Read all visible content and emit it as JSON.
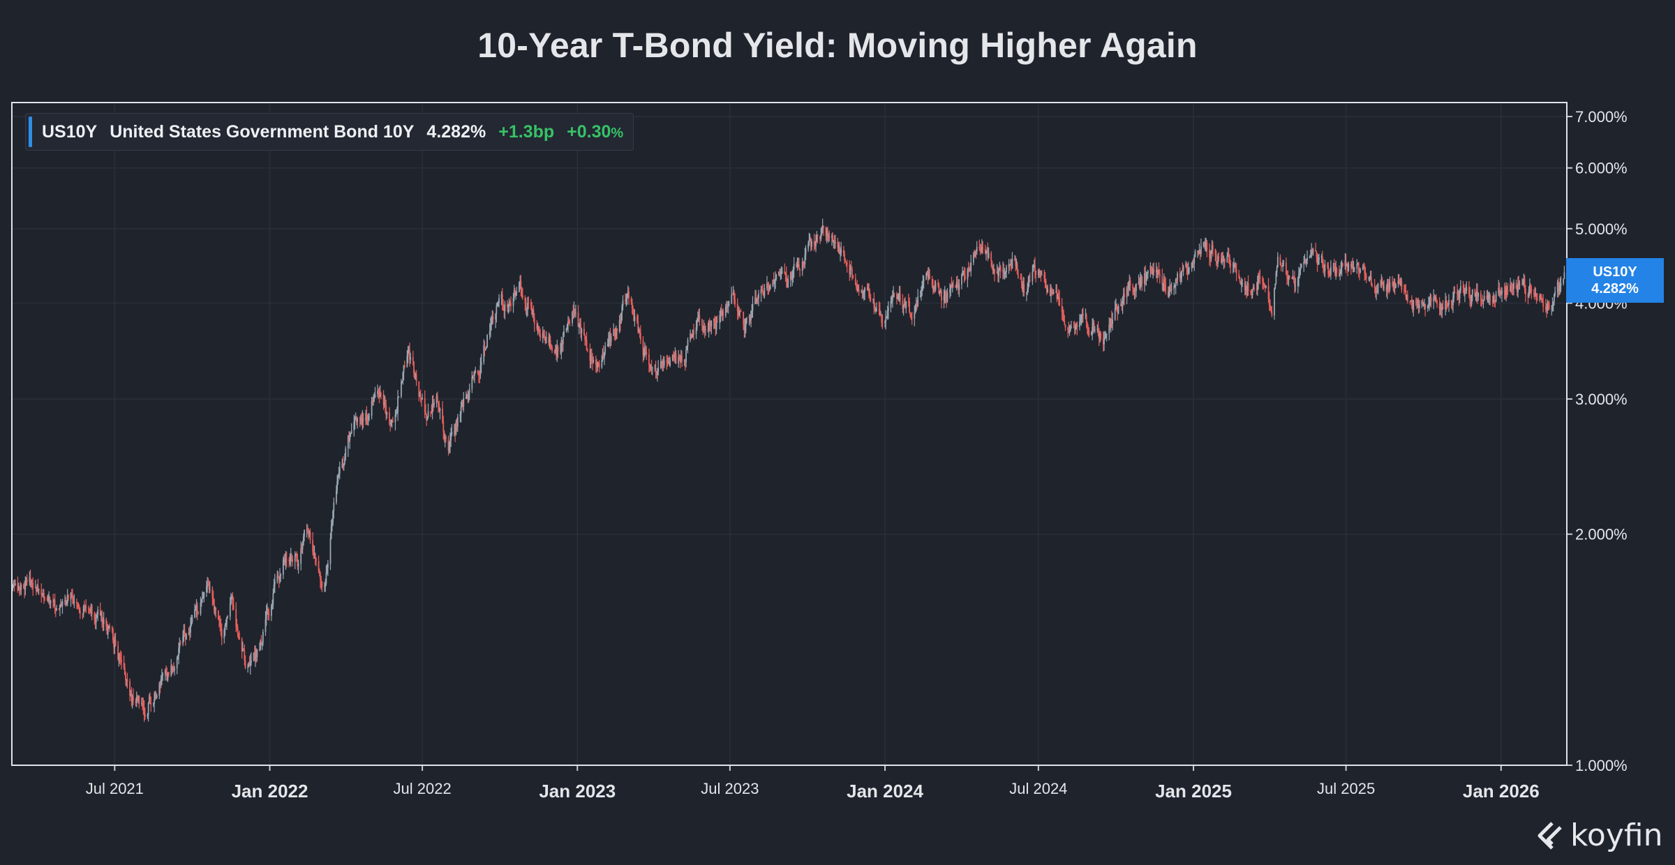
{
  "chart_data": {
    "type": "candlestick",
    "title": "10-Year T-Bond Yield: Moving Higher Again",
    "scale": "log",
    "ylim": [
      1.0,
      7.3
    ],
    "y_ticks": [
      "1.000%",
      "2.000%",
      "3.000%",
      "4.000%",
      "5.000%",
      "6.000%",
      "7.000%"
    ],
    "y_tick_values": [
      1,
      2,
      3,
      4,
      5,
      6,
      7
    ],
    "x_ticks": [
      {
        "label": "Jul 2021",
        "date": "2021-07-01",
        "bold": false
      },
      {
        "label": "Jan 2022",
        "date": "2022-01-01",
        "bold": true
      },
      {
        "label": "Jul 2022",
        "date": "2022-07-01",
        "bold": false
      },
      {
        "label": "Jan 2023",
        "date": "2023-01-01",
        "bold": true
      },
      {
        "label": "Jul 2023",
        "date": "2023-07-01",
        "bold": false
      },
      {
        "label": "Jan 2024",
        "date": "2024-01-01",
        "bold": true
      },
      {
        "label": "Jul 2024",
        "date": "2024-07-01",
        "bold": false
      },
      {
        "label": "Jan 2025",
        "date": "2025-01-01",
        "bold": true
      },
      {
        "label": "Jul 2025",
        "date": "2025-07-01",
        "bold": false
      },
      {
        "label": "Jan 2026",
        "date": "2026-01-01",
        "bold": true
      }
    ],
    "x_range": [
      "2021-03-01",
      "2026-03-20"
    ],
    "grid": true,
    "series": [
      {
        "name": "US10Y",
        "points": [
          [
            "2021-03-01",
            1.68
          ],
          [
            "2021-03-18",
            1.74
          ],
          [
            "2021-04-05",
            1.7
          ],
          [
            "2021-04-20",
            1.6
          ],
          [
            "2021-05-12",
            1.68
          ],
          [
            "2021-06-01",
            1.6
          ],
          [
            "2021-06-15",
            1.55
          ],
          [
            "2021-07-01",
            1.45
          ],
          [
            "2021-07-20",
            1.23
          ],
          [
            "2021-08-04",
            1.18
          ],
          [
            "2021-08-20",
            1.26
          ],
          [
            "2021-09-03",
            1.31
          ],
          [
            "2021-09-28",
            1.52
          ],
          [
            "2021-10-21",
            1.69
          ],
          [
            "2021-11-05",
            1.45
          ],
          [
            "2021-11-16",
            1.64
          ],
          [
            "2021-12-03",
            1.35
          ],
          [
            "2021-12-20",
            1.42
          ],
          [
            "2022-01-03",
            1.63
          ],
          [
            "2022-01-18",
            1.88
          ],
          [
            "2022-02-03",
            1.85
          ],
          [
            "2022-02-15",
            2.05
          ],
          [
            "2022-03-07",
            1.72
          ],
          [
            "2022-03-23",
            2.38
          ],
          [
            "2022-04-12",
            2.8
          ],
          [
            "2022-04-28",
            2.85
          ],
          [
            "2022-05-09",
            3.12
          ],
          [
            "2022-05-26",
            2.75
          ],
          [
            "2022-06-14",
            3.48
          ],
          [
            "2022-07-05",
            2.82
          ],
          [
            "2022-07-18",
            3.03
          ],
          [
            "2022-08-01",
            2.6
          ],
          [
            "2022-08-22",
            3.02
          ],
          [
            "2022-09-06",
            3.3
          ],
          [
            "2022-09-27",
            3.95
          ],
          [
            "2022-10-14",
            4.02
          ],
          [
            "2022-10-24",
            4.25
          ],
          [
            "2022-11-10",
            3.82
          ],
          [
            "2022-12-07",
            3.42
          ],
          [
            "2022-12-28",
            3.88
          ],
          [
            "2023-01-18",
            3.37
          ],
          [
            "2023-02-02",
            3.4
          ],
          [
            "2023-03-02",
            4.08
          ],
          [
            "2023-03-23",
            3.38
          ],
          [
            "2023-04-06",
            3.28
          ],
          [
            "2023-05-04",
            3.37
          ],
          [
            "2023-05-26",
            3.8
          ],
          [
            "2023-06-16",
            3.76
          ],
          [
            "2023-07-06",
            4.06
          ],
          [
            "2023-07-19",
            3.75
          ],
          [
            "2023-08-22",
            4.33
          ],
          [
            "2023-09-08",
            4.26
          ],
          [
            "2023-09-28",
            4.59
          ],
          [
            "2023-10-19",
            4.99
          ],
          [
            "2023-11-10",
            4.63
          ],
          [
            "2023-12-05",
            4.17
          ],
          [
            "2023-12-27",
            3.79
          ],
          [
            "2024-01-17",
            4.11
          ],
          [
            "2024-02-01",
            3.87
          ],
          [
            "2024-02-22",
            4.33
          ],
          [
            "2024-03-08",
            4.08
          ],
          [
            "2024-03-27",
            4.19
          ],
          [
            "2024-04-25",
            4.7
          ],
          [
            "2024-05-17",
            4.37
          ],
          [
            "2024-05-29",
            4.62
          ],
          [
            "2024-06-14",
            4.2
          ],
          [
            "2024-06-28",
            4.4
          ],
          [
            "2024-07-17",
            4.16
          ],
          [
            "2024-08-05",
            3.78
          ],
          [
            "2024-08-23",
            3.8
          ],
          [
            "2024-09-16",
            3.62
          ],
          [
            "2024-10-07",
            4.02
          ],
          [
            "2024-10-31",
            4.28
          ],
          [
            "2024-11-15",
            4.44
          ],
          [
            "2024-12-06",
            4.15
          ],
          [
            "2025-01-14",
            4.79
          ],
          [
            "2025-02-03",
            4.54
          ],
          [
            "2025-02-19",
            4.53
          ],
          [
            "2025-03-04",
            4.15
          ],
          [
            "2025-03-26",
            4.34
          ],
          [
            "2025-04-04",
            4.0
          ],
          [
            "2025-04-11",
            4.49
          ],
          [
            "2025-05-01",
            4.18
          ],
          [
            "2025-05-21",
            4.6
          ],
          [
            "2025-06-11",
            4.41
          ],
          [
            "2025-07-15",
            4.48
          ],
          [
            "2025-08-04",
            4.2
          ],
          [
            "2025-08-27",
            4.25
          ],
          [
            "2025-09-16",
            4.03
          ],
          [
            "2025-10-16",
            3.97
          ],
          [
            "2025-11-10",
            4.11
          ],
          [
            "2025-12-03",
            4.08
          ],
          [
            "2025-12-31",
            4.17
          ],
          [
            "2026-01-20",
            4.22
          ],
          [
            "2026-02-12",
            4.08
          ],
          [
            "2026-02-26",
            3.98
          ],
          [
            "2026-03-12",
            4.21
          ],
          [
            "2026-03-17",
            4.282
          ]
        ]
      }
    ]
  },
  "legend": {
    "ticker": "US10Y",
    "name": "United States Government Bond 10Y",
    "value": "4.282%",
    "change_bp": "+1.3bp",
    "change_pct": "+0.30",
    "pct_sign": "%"
  },
  "last_tag": {
    "ticker": "US10Y",
    "value": "4.282%"
  },
  "brand": {
    "name": "koyfin"
  },
  "colors": {
    "up": "#9aa7b3",
    "down": "#e8605c",
    "grid": "#2a2f39",
    "accent": "#2483e6",
    "positive": "#37c266"
  }
}
